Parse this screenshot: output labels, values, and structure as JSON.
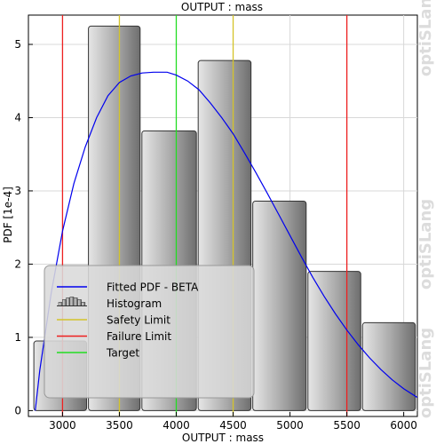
{
  "chart_data": {
    "type": "bar",
    "title": "OUTPUT : mass",
    "xlabel": "OUTPUT : mass",
    "ylabel": "PDF [1e-4]",
    "xlim": [
      2700,
      6120
    ],
    "ylim": [
      -0.08,
      5.4
    ],
    "xticks": [
      3000,
      3500,
      4000,
      4500,
      5000,
      5500,
      6000
    ],
    "yticks": [
      0,
      1,
      2,
      3,
      4,
      5
    ],
    "grid": true,
    "legend_position": "bottom-left",
    "histogram": {
      "name": "Histogram",
      "bins": [
        {
          "x0": 2740,
          "x1": 3220,
          "value": 0.95
        },
        {
          "x0": 3220,
          "x1": 3690,
          "value": 5.25
        },
        {
          "x0": 3690,
          "x1": 4185,
          "value": 3.82
        },
        {
          "x0": 4185,
          "x1": 4665,
          "value": 4.78
        },
        {
          "x0": 4665,
          "x1": 5150,
          "value": 2.86
        },
        {
          "x0": 5150,
          "x1": 5630,
          "value": 1.9
        },
        {
          "x0": 5630,
          "x1": 6110,
          "value": 1.2
        }
      ]
    },
    "fitted_pdf": {
      "name": "Fitted PDF - BETA",
      "color": "#0000ee",
      "points": [
        [
          2760,
          0.0
        ],
        [
          2800,
          0.55
        ],
        [
          2900,
          1.6
        ],
        [
          3000,
          2.45
        ],
        [
          3100,
          3.1
        ],
        [
          3200,
          3.6
        ],
        [
          3300,
          4.0
        ],
        [
          3400,
          4.3
        ],
        [
          3500,
          4.48
        ],
        [
          3600,
          4.57
        ],
        [
          3700,
          4.61
        ],
        [
          3800,
          4.62
        ],
        [
          3920,
          4.62
        ],
        [
          4000,
          4.58
        ],
        [
          4100,
          4.5
        ],
        [
          4200,
          4.38
        ],
        [
          4300,
          4.2
        ],
        [
          4400,
          4.0
        ],
        [
          4500,
          3.78
        ],
        [
          4600,
          3.52
        ],
        [
          4700,
          3.25
        ],
        [
          4800,
          2.97
        ],
        [
          4900,
          2.68
        ],
        [
          5000,
          2.39
        ],
        [
          5100,
          2.1
        ],
        [
          5200,
          1.82
        ],
        [
          5300,
          1.56
        ],
        [
          5400,
          1.32
        ],
        [
          5500,
          1.1
        ],
        [
          5600,
          0.9
        ],
        [
          5700,
          0.72
        ],
        [
          5800,
          0.56
        ],
        [
          5900,
          0.42
        ],
        [
          6000,
          0.3
        ],
        [
          6120,
          0.18
        ]
      ]
    },
    "reference_lines": [
      {
        "name": "Safety Limit",
        "color": "#d4c42a",
        "x": [
          3500,
          4500
        ]
      },
      {
        "name": "Failure Limit",
        "color": "#ee2020",
        "x": [
          3000,
          5500
        ]
      },
      {
        "name": "Target",
        "color": "#22dd22",
        "x": [
          4000
        ]
      }
    ],
    "legend": [
      {
        "label": "Fitted PDF - BETA",
        "kind": "line",
        "color": "#0000ee"
      },
      {
        "label": "Histogram",
        "kind": "histogram",
        "color": "#888888"
      },
      {
        "label": "Safety Limit",
        "kind": "line",
        "color": "#d4c42a"
      },
      {
        "label": "Failure Limit",
        "kind": "line",
        "color": "#ee2020"
      },
      {
        "label": "Target",
        "kind": "line",
        "color": "#22dd22"
      }
    ],
    "watermark": "optiSLang"
  }
}
